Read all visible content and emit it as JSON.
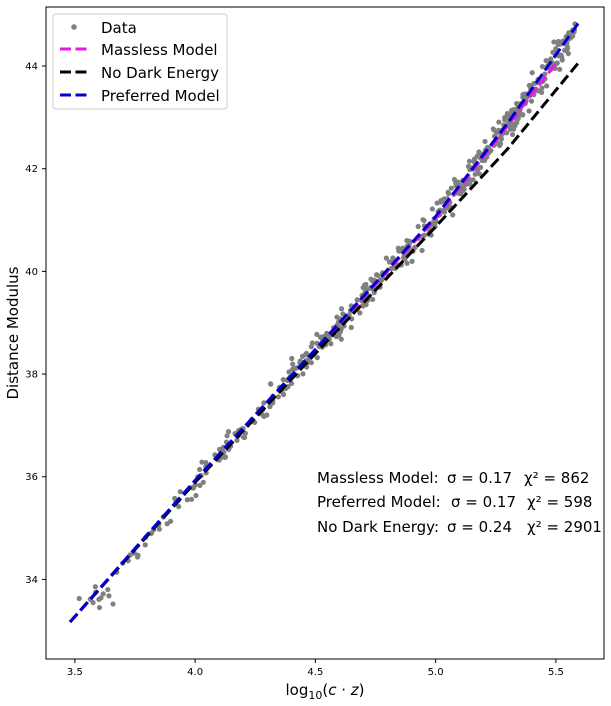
{
  "chart_data": {
    "type": "scatter",
    "xlabel": "log₁₀(c · z)",
    "ylabel": "Distance Modulus",
    "xlim": [
      3.38,
      5.7
    ],
    "ylim": [
      32.45,
      45.15
    ],
    "xticks": [
      3.5,
      4.0,
      4.5,
      5.0,
      5.5
    ],
    "xtick_labels": [
      "3.5",
      "4.0",
      "4.5",
      "5.0",
      "5.5"
    ],
    "yticks": [
      34,
      36,
      38,
      40,
      42,
      44
    ],
    "ytick_labels": [
      "34",
      "36",
      "38",
      "40",
      "42",
      "44"
    ],
    "grid": false,
    "legend_position": "top-left",
    "series": [
      {
        "name": "Data",
        "kind": "scatter",
        "color": "#808080",
        "anchors": [
          [
            3.48,
            33.1
          ],
          [
            3.6,
            33.65
          ],
          [
            3.8,
            34.75
          ],
          [
            4.0,
            35.85
          ],
          [
            4.2,
            36.9
          ],
          [
            4.4,
            37.95
          ],
          [
            4.6,
            38.95
          ],
          [
            4.7,
            39.5
          ],
          [
            4.8,
            40.0
          ],
          [
            4.9,
            40.5
          ],
          [
            5.0,
            41.05
          ],
          [
            5.1,
            41.65
          ],
          [
            5.2,
            42.25
          ],
          [
            5.3,
            42.85
          ],
          [
            5.4,
            43.5
          ],
          [
            5.5,
            44.15
          ],
          [
            5.58,
            44.75
          ]
        ],
        "scatter_std": 0.13,
        "count": 520
      },
      {
        "name": "Massless Model",
        "kind": "line",
        "color": "#e619e6",
        "points": [
          [
            3.48,
            33.17
          ],
          [
            4.0,
            35.92
          ],
          [
            4.5,
            38.47
          ],
          [
            5.0,
            41.03
          ],
          [
            5.5,
            44.05
          ]
        ]
      },
      {
        "name": "No Dark Energy",
        "kind": "line",
        "color": "#000000",
        "points": [
          [
            3.48,
            33.17
          ],
          [
            4.0,
            35.89
          ],
          [
            4.5,
            38.4
          ],
          [
            5.0,
            40.87
          ],
          [
            5.3,
            42.39
          ],
          [
            5.6,
            44.1
          ]
        ]
      },
      {
        "name": "Preferred Model",
        "kind": "line",
        "color": "#0000cc",
        "points": [
          [
            3.48,
            33.17
          ],
          [
            4.0,
            35.93
          ],
          [
            4.5,
            38.48
          ],
          [
            5.0,
            41.07
          ],
          [
            5.3,
            42.89
          ],
          [
            5.6,
            44.88
          ]
        ]
      }
    ],
    "annotations": [
      {
        "label": "Massless Model:",
        "sigma": "σ = 0.17",
        "chi": "χ² = 862"
      },
      {
        "label": "Preferred Model:",
        "sigma": "σ = 0.17",
        "chi": "χ² = 598"
      },
      {
        "label": "No Dark Energy:",
        "sigma": "σ = 0.24",
        "chi": "χ² = 2901"
      }
    ]
  }
}
